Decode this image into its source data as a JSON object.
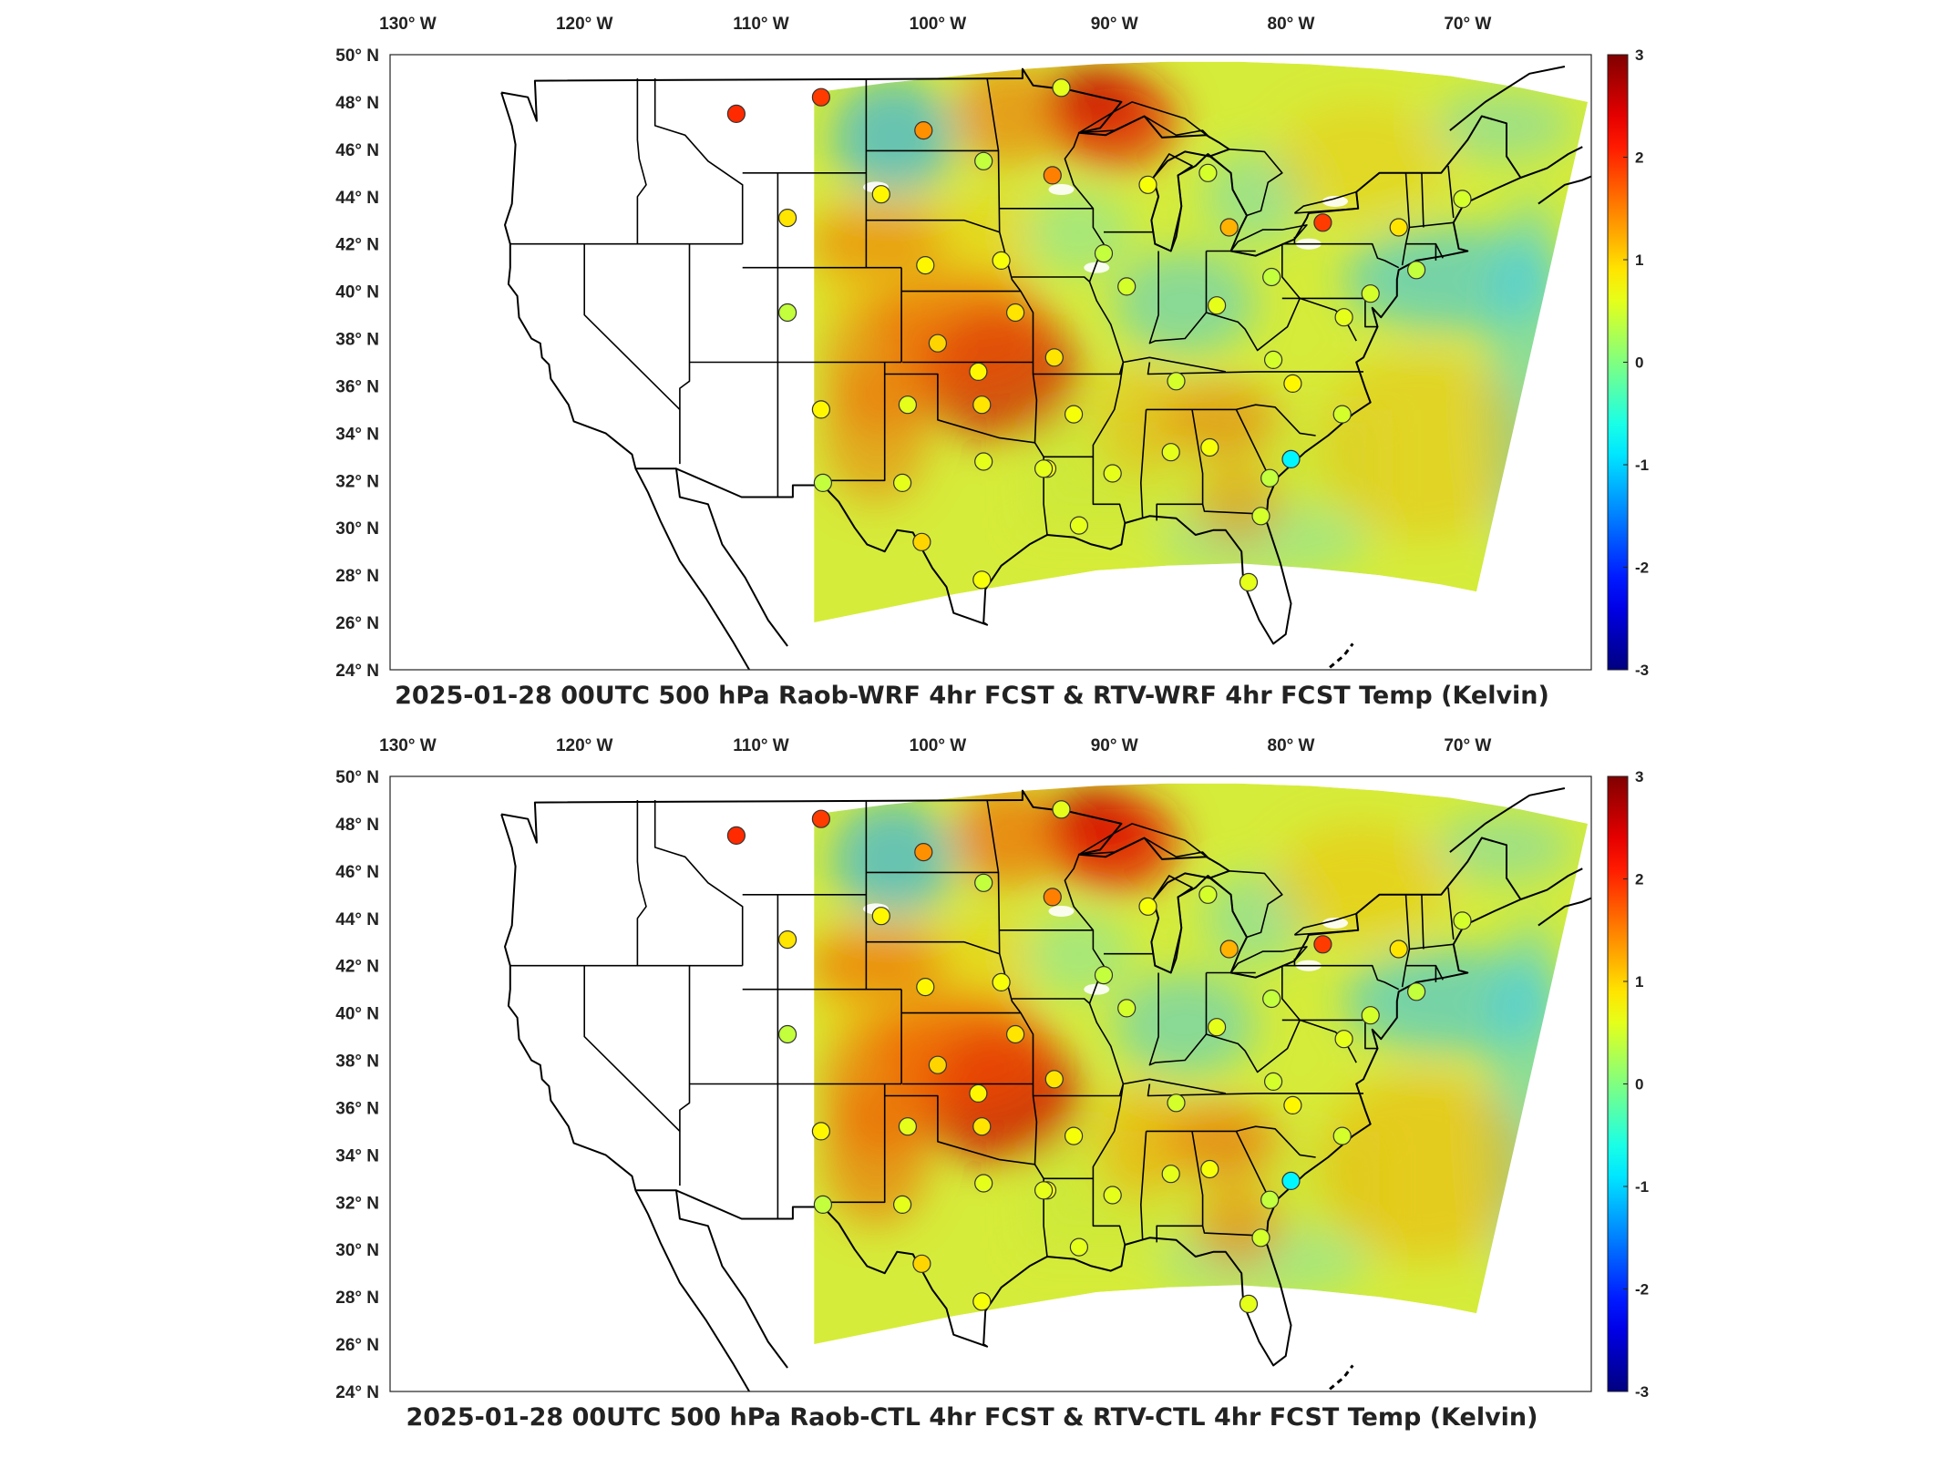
{
  "maps": [
    {
      "title": "2025-01-28 00UTC 500 hPa Raob-WRF 4hr FCST & RTV-WRF 4hr FCST Temp (Kelvin)",
      "variant": "wrf"
    },
    {
      "title": "2025-01-28 00UTC 500 hPa Raob-CTL 4hr FCST & RTV-CTL 4hr FCST Temp (Kelvin)",
      "variant": "ctl"
    }
  ],
  "lon_ticks": [
    -130,
    -120,
    -110,
    -100,
    -90,
    -80,
    -70
  ],
  "lon_labels": [
    "130° W",
    "120° W",
    "110° W",
    "100° W",
    "90° W",
    "80° W",
    "70° W"
  ],
  "lat_ticks": [
    24,
    26,
    28,
    30,
    32,
    34,
    36,
    38,
    40,
    42,
    44,
    46,
    48,
    50
  ],
  "lat_labels": [
    "24° N",
    "26° N",
    "28° N",
    "30° N",
    "32° N",
    "34° N",
    "36° N",
    "38° N",
    "40° N",
    "42° N",
    "44° N",
    "46° N",
    "48° N",
    "50° N"
  ],
  "colorbar": {
    "min": -3,
    "max": 3,
    "ticks": [
      -3,
      -2,
      -1,
      0,
      1,
      2,
      3
    ],
    "colormap": "jet",
    "units": "Kelvin"
  },
  "map_extent": {
    "lon": [
      -131,
      -63
    ],
    "lat": [
      24,
      50
    ]
  },
  "chart_data": [
    {
      "type": "scatter",
      "title": "2025-01-28 00UTC 500 hPa Raob-WRF 4hr FCST & RTV-WRF 4hr FCST Temp (Kelvin)",
      "xlim": [
        -131,
        -63
      ],
      "ylim": [
        24,
        50
      ],
      "color_range": [
        -3,
        3
      ],
      "points": [
        {
          "lon": -111.4,
          "lat": 47.5,
          "v": 2.0
        },
        {
          "lon": -106.6,
          "lat": 48.2,
          "v": 1.9
        },
        {
          "lon": -100.8,
          "lat": 46.8,
          "v": 1.4
        },
        {
          "lon": -97.4,
          "lat": 45.5,
          "v": 0.4
        },
        {
          "lon": -93.5,
          "lat": 44.9,
          "v": 1.5
        },
        {
          "lon": -93.0,
          "lat": 48.6,
          "v": 0.6
        },
        {
          "lon": -103.2,
          "lat": 44.1,
          "v": 0.8
        },
        {
          "lon": -108.5,
          "lat": 43.1,
          "v": 0.9
        },
        {
          "lon": -108.5,
          "lat": 39.1,
          "v": 0.4
        },
        {
          "lon": -106.6,
          "lat": 35.0,
          "v": 0.8
        },
        {
          "lon": -106.5,
          "lat": 31.9,
          "v": 0.4
        },
        {
          "lon": -101.7,
          "lat": 35.2,
          "v": 0.6
        },
        {
          "lon": -102.0,
          "lat": 31.9,
          "v": 0.6
        },
        {
          "lon": -100.9,
          "lat": 29.4,
          "v": 1.0
        },
        {
          "lon": -97.5,
          "lat": 27.8,
          "v": 0.7
        },
        {
          "lon": -97.4,
          "lat": 32.8,
          "v": 0.6
        },
        {
          "lon": -97.5,
          "lat": 35.2,
          "v": 0.9
        },
        {
          "lon": -97.7,
          "lat": 36.6,
          "v": 0.8
        },
        {
          "lon": -100.0,
          "lat": 37.8,
          "v": 1.0
        },
        {
          "lon": -100.7,
          "lat": 41.1,
          "v": 0.8
        },
        {
          "lon": -96.4,
          "lat": 41.3,
          "v": 0.7
        },
        {
          "lon": -95.6,
          "lat": 39.1,
          "v": 0.9
        },
        {
          "lon": -93.4,
          "lat": 37.2,
          "v": 0.9
        },
        {
          "lon": -92.3,
          "lat": 34.8,
          "v": 0.7
        },
        {
          "lon": -93.8,
          "lat": 32.5,
          "v": 0.7
        },
        {
          "lon": -92.0,
          "lat": 30.1,
          "v": 0.6
        },
        {
          "lon": -90.1,
          "lat": 32.3,
          "v": 0.6
        },
        {
          "lon": -86.8,
          "lat": 33.2,
          "v": 0.6
        },
        {
          "lon": -84.6,
          "lat": 33.4,
          "v": 0.7
        },
        {
          "lon": -81.2,
          "lat": 32.1,
          "v": 0.4
        },
        {
          "lon": -80.0,
          "lat": 32.9,
          "v": -0.8
        },
        {
          "lon": -81.7,
          "lat": 30.5,
          "v": 0.5
        },
        {
          "lon": -82.4,
          "lat": 27.7,
          "v": 0.6
        },
        {
          "lon": -86.5,
          "lat": 36.2,
          "v": 0.5
        },
        {
          "lon": -89.3,
          "lat": 40.2,
          "v": 0.5
        },
        {
          "lon": -90.6,
          "lat": 41.6,
          "v": 0.4
        },
        {
          "lon": -84.2,
          "lat": 39.4,
          "v": 0.6
        },
        {
          "lon": -81.1,
          "lat": 40.6,
          "v": 0.4
        },
        {
          "lon": -78.2,
          "lat": 42.9,
          "v": 1.9
        },
        {
          "lon": -83.5,
          "lat": 42.7,
          "v": 1.2
        },
        {
          "lon": -88.1,
          "lat": 44.5,
          "v": 0.7
        },
        {
          "lon": -84.7,
          "lat": 45.0,
          "v": 0.5
        },
        {
          "lon": -79.9,
          "lat": 36.1,
          "v": 0.8
        },
        {
          "lon": -81.0,
          "lat": 37.1,
          "v": 0.5
        },
        {
          "lon": -77.0,
          "lat": 38.9,
          "v": 0.6
        },
        {
          "lon": -75.5,
          "lat": 39.9,
          "v": 0.5
        },
        {
          "lon": -77.1,
          "lat": 34.8,
          "v": 0.5
        },
        {
          "lon": -73.9,
          "lat": 42.7,
          "v": 0.9
        },
        {
          "lon": -72.9,
          "lat": 40.9,
          "v": 0.4
        },
        {
          "lon": -70.3,
          "lat": 43.9,
          "v": 0.5
        },
        {
          "lon": -94.0,
          "lat": 32.5,
          "v": 0.6
        }
      ]
    },
    {
      "type": "scatter",
      "title": "2025-01-28 00UTC 500 hPa Raob-CTL 4hr FCST & RTV-CTL 4hr FCST Temp (Kelvin)",
      "xlim": [
        -131,
        -63
      ],
      "ylim": [
        24,
        50
      ],
      "color_range": [
        -3,
        3
      ],
      "points": [
        {
          "lon": -111.4,
          "lat": 47.5,
          "v": 2.0
        },
        {
          "lon": -106.6,
          "lat": 48.2,
          "v": 1.9
        },
        {
          "lon": -100.8,
          "lat": 46.8,
          "v": 1.4
        },
        {
          "lon": -97.4,
          "lat": 45.5,
          "v": 0.4
        },
        {
          "lon": -93.5,
          "lat": 44.9,
          "v": 1.5
        },
        {
          "lon": -93.0,
          "lat": 48.6,
          "v": 0.6
        },
        {
          "lon": -103.2,
          "lat": 44.1,
          "v": 0.8
        },
        {
          "lon": -108.5,
          "lat": 43.1,
          "v": 0.9
        },
        {
          "lon": -108.5,
          "lat": 39.1,
          "v": 0.4
        },
        {
          "lon": -106.6,
          "lat": 35.0,
          "v": 0.8
        },
        {
          "lon": -106.5,
          "lat": 31.9,
          "v": 0.4
        },
        {
          "lon": -101.7,
          "lat": 35.2,
          "v": 0.6
        },
        {
          "lon": -102.0,
          "lat": 31.9,
          "v": 0.6
        },
        {
          "lon": -100.9,
          "lat": 29.4,
          "v": 1.0
        },
        {
          "lon": -97.5,
          "lat": 27.8,
          "v": 0.7
        },
        {
          "lon": -97.4,
          "lat": 32.8,
          "v": 0.6
        },
        {
          "lon": -97.5,
          "lat": 35.2,
          "v": 0.9
        },
        {
          "lon": -97.7,
          "lat": 36.6,
          "v": 0.8
        },
        {
          "lon": -100.0,
          "lat": 37.8,
          "v": 1.0
        },
        {
          "lon": -100.7,
          "lat": 41.1,
          "v": 0.8
        },
        {
          "lon": -96.4,
          "lat": 41.3,
          "v": 0.7
        },
        {
          "lon": -95.6,
          "lat": 39.1,
          "v": 0.9
        },
        {
          "lon": -93.4,
          "lat": 37.2,
          "v": 0.9
        },
        {
          "lon": -92.3,
          "lat": 34.8,
          "v": 0.7
        },
        {
          "lon": -93.8,
          "lat": 32.5,
          "v": 0.7
        },
        {
          "lon": -92.0,
          "lat": 30.1,
          "v": 0.6
        },
        {
          "lon": -90.1,
          "lat": 32.3,
          "v": 0.6
        },
        {
          "lon": -86.8,
          "lat": 33.2,
          "v": 0.6
        },
        {
          "lon": -84.6,
          "lat": 33.4,
          "v": 0.7
        },
        {
          "lon": -81.2,
          "lat": 32.1,
          "v": 0.4
        },
        {
          "lon": -80.0,
          "lat": 32.9,
          "v": -0.8
        },
        {
          "lon": -81.7,
          "lat": 30.5,
          "v": 0.5
        },
        {
          "lon": -82.4,
          "lat": 27.7,
          "v": 0.6
        },
        {
          "lon": -86.5,
          "lat": 36.2,
          "v": 0.5
        },
        {
          "lon": -89.3,
          "lat": 40.2,
          "v": 0.5
        },
        {
          "lon": -90.6,
          "lat": 41.6,
          "v": 0.4
        },
        {
          "lon": -84.2,
          "lat": 39.4,
          "v": 0.6
        },
        {
          "lon": -81.1,
          "lat": 40.6,
          "v": 0.4
        },
        {
          "lon": -78.2,
          "lat": 42.9,
          "v": 1.9
        },
        {
          "lon": -83.5,
          "lat": 42.7,
          "v": 1.2
        },
        {
          "lon": -88.1,
          "lat": 44.5,
          "v": 0.7
        },
        {
          "lon": -84.7,
          "lat": 45.0,
          "v": 0.5
        },
        {
          "lon": -79.9,
          "lat": 36.1,
          "v": 0.8
        },
        {
          "lon": -81.0,
          "lat": 37.1,
          "v": 0.5
        },
        {
          "lon": -77.0,
          "lat": 38.9,
          "v": 0.6
        },
        {
          "lon": -75.5,
          "lat": 39.9,
          "v": 0.5
        },
        {
          "lon": -77.1,
          "lat": 34.8,
          "v": 0.5
        },
        {
          "lon": -73.9,
          "lat": 42.7,
          "v": 0.9
        },
        {
          "lon": -72.9,
          "lat": 40.9,
          "v": 0.4
        },
        {
          "lon": -70.3,
          "lat": 43.9,
          "v": 0.5
        },
        {
          "lon": -94.0,
          "lat": 32.5,
          "v": 0.6
        }
      ]
    }
  ]
}
